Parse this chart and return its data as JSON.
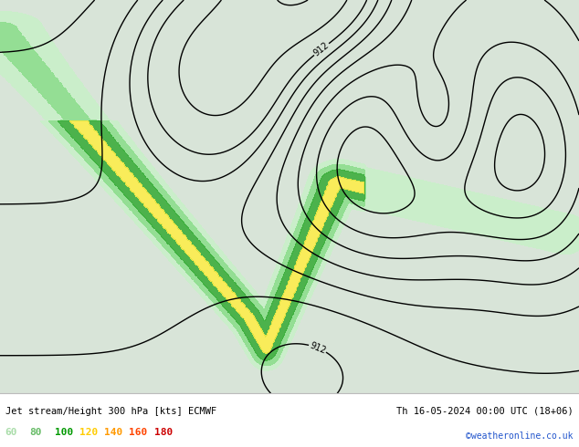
{
  "title_left": "Jet stream/Height 300 hPa [kts] ECMWF",
  "title_right": "Th 16-05-2024 00:00 UTC (18+06)",
  "credit": "©weatheronline.co.uk",
  "legend_values": [
    "60",
    "80",
    "100",
    "120",
    "140",
    "160",
    "180"
  ],
  "legend_colors": [
    "#aaddaa",
    "#66bb66",
    "#009900",
    "#ffcc00",
    "#ff9900",
    "#ff4400",
    "#cc0000"
  ],
  "figsize": [
    6.34,
    4.9
  ],
  "dpi": 100,
  "lon_min": -58,
  "lon_max": 42,
  "lat_min": 22,
  "lat_max": 74,
  "ocean_color": "#d8e4d8",
  "land_color": "#e8e8e0",
  "border_color": "#aaaaaa",
  "contour_levels": [
    880,
    892,
    904,
    912,
    916,
    920,
    924,
    928,
    932,
    936,
    940,
    944,
    948,
    952
  ],
  "contour_label_levels": [
    880,
    912,
    944
  ],
  "jet_levels": [
    60,
    80,
    100,
    120,
    140,
    160,
    180,
    220
  ],
  "jet_colors": [
    "#c8f0c8",
    "#88dd88",
    "#33aa33",
    "#ffee44",
    "#ffaa00",
    "#ff4400",
    "#cc0000"
  ]
}
